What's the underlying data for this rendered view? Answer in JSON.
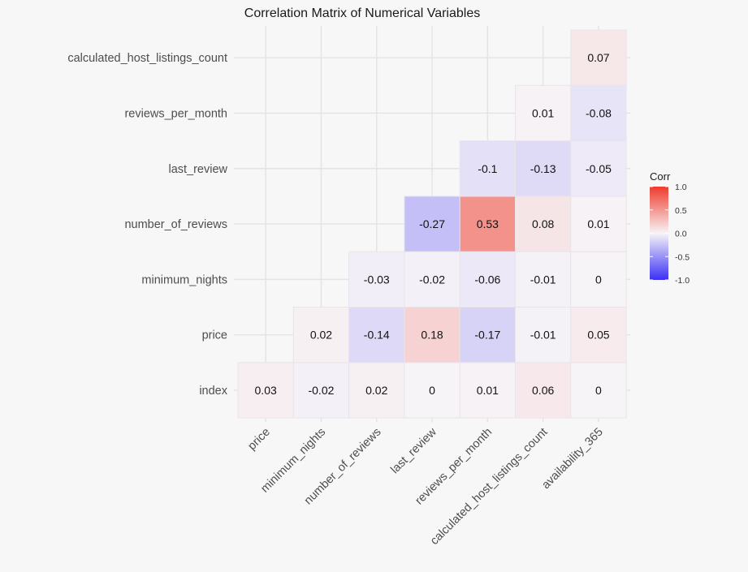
{
  "chart_data": {
    "type": "heatmap",
    "title": "Correlation Matrix of Numerical Variables",
    "xlabel": "",
    "ylabel": "",
    "x_categories": [
      "price",
      "minimum_nights",
      "number_of_reviews",
      "last_review",
      "reviews_per_month",
      "calculated_host_listings_count",
      "availability_365"
    ],
    "y_categories": [
      "index",
      "price",
      "minimum_nights",
      "number_of_reviews",
      "last_review",
      "reviews_per_month",
      "calculated_host_listings_count"
    ],
    "cells": [
      {
        "x": "price",
        "y": "index",
        "value": 0.03,
        "label": "0.03"
      },
      {
        "x": "minimum_nights",
        "y": "index",
        "value": -0.02,
        "label": "-0.02"
      },
      {
        "x": "number_of_reviews",
        "y": "index",
        "value": 0.02,
        "label": "0.02"
      },
      {
        "x": "last_review",
        "y": "index",
        "value": 0,
        "label": "0"
      },
      {
        "x": "reviews_per_month",
        "y": "index",
        "value": 0.01,
        "label": "0.01"
      },
      {
        "x": "calculated_host_listings_count",
        "y": "index",
        "value": 0.06,
        "label": "0.06"
      },
      {
        "x": "availability_365",
        "y": "index",
        "value": 0,
        "label": "0"
      },
      {
        "x": "minimum_nights",
        "y": "price",
        "value": 0.02,
        "label": "0.02"
      },
      {
        "x": "number_of_reviews",
        "y": "price",
        "value": -0.14,
        "label": "-0.14"
      },
      {
        "x": "last_review",
        "y": "price",
        "value": 0.18,
        "label": "0.18"
      },
      {
        "x": "reviews_per_month",
        "y": "price",
        "value": -0.17,
        "label": "-0.17"
      },
      {
        "x": "calculated_host_listings_count",
        "y": "price",
        "value": -0.01,
        "label": "-0.01"
      },
      {
        "x": "availability_365",
        "y": "price",
        "value": 0.05,
        "label": "0.05"
      },
      {
        "x": "number_of_reviews",
        "y": "minimum_nights",
        "value": -0.03,
        "label": "-0.03"
      },
      {
        "x": "last_review",
        "y": "minimum_nights",
        "value": -0.02,
        "label": "-0.02"
      },
      {
        "x": "reviews_per_month",
        "y": "minimum_nights",
        "value": -0.06,
        "label": "-0.06"
      },
      {
        "x": "calculated_host_listings_count",
        "y": "minimum_nights",
        "value": -0.01,
        "label": "-0.01"
      },
      {
        "x": "availability_365",
        "y": "minimum_nights",
        "value": 0,
        "label": "0"
      },
      {
        "x": "last_review",
        "y": "number_of_reviews",
        "value": -0.27,
        "label": "-0.27"
      },
      {
        "x": "reviews_per_month",
        "y": "number_of_reviews",
        "value": 0.53,
        "label": "0.53"
      },
      {
        "x": "calculated_host_listings_count",
        "y": "number_of_reviews",
        "value": 0.08,
        "label": "0.08"
      },
      {
        "x": "availability_365",
        "y": "number_of_reviews",
        "value": 0.01,
        "label": "0.01"
      },
      {
        "x": "reviews_per_month",
        "y": "last_review",
        "value": -0.1,
        "label": "-0.1"
      },
      {
        "x": "calculated_host_listings_count",
        "y": "last_review",
        "value": -0.13,
        "label": "-0.13"
      },
      {
        "x": "availability_365",
        "y": "last_review",
        "value": -0.05,
        "label": "-0.05"
      },
      {
        "x": "calculated_host_listings_count",
        "y": "reviews_per_month",
        "value": 0.01,
        "label": "0.01"
      },
      {
        "x": "availability_365",
        "y": "reviews_per_month",
        "value": -0.08,
        "label": "-0.08"
      },
      {
        "x": "availability_365",
        "y": "calculated_host_listings_count",
        "value": 0.07,
        "label": "0.07"
      }
    ],
    "color_scale": {
      "low": "#3b30f5",
      "mid": "#f7f4f7",
      "high": "#ef3b2c",
      "domain": [
        -1,
        0,
        1
      ]
    },
    "legend": {
      "title": "Corr",
      "placement": "right",
      "ticks": [
        {
          "value": 1,
          "label": "1.0"
        },
        {
          "value": 0.5,
          "label": "0.5"
        },
        {
          "value": 0,
          "label": "0.0"
        },
        {
          "value": -0.5,
          "label": "-0.5"
        },
        {
          "value": -1,
          "label": "-1.0"
        }
      ]
    },
    "grid": true
  }
}
